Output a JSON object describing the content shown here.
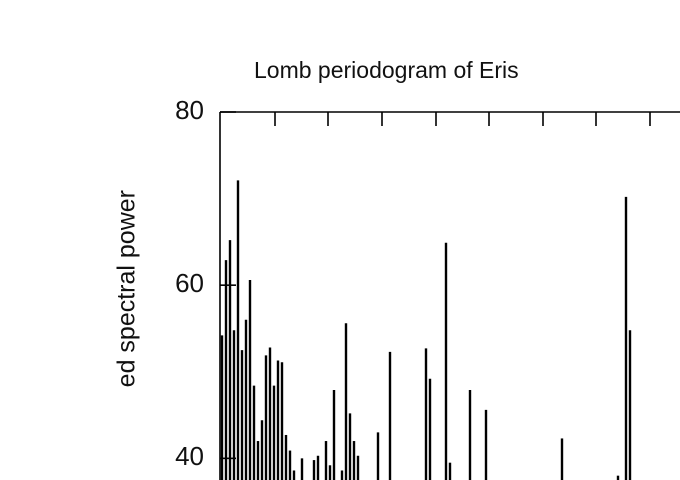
{
  "chart_data": {
    "type": "spike",
    "title": "Lomb periodogram of Eris",
    "y_label": "ed spectral power",
    "color": "#000000",
    "ylim": [
      37.5,
      80
    ],
    "yticks": [
      40,
      60,
      80
    ],
    "values": [
      54.2,
      62.9,
      65.2,
      54.8,
      72.1,
      52.5,
      56,
      60.6,
      48.4,
      42,
      44.4,
      51.9,
      52.8,
      48.4,
      51.3,
      51.1,
      42.7,
      40.9,
      38.6,
      null,
      40,
      null,
      null,
      39.8,
      40.3,
      null,
      42,
      39.2,
      47.9,
      null,
      38.6,
      55.6,
      45.2,
      42,
      40.3,
      null,
      null,
      null,
      null,
      43,
      null,
      null,
      52.3,
      null,
      null,
      null,
      null,
      null,
      null,
      null,
      null,
      52.7,
      49.2,
      null,
      null,
      null,
      64.9,
      39.5,
      null,
      null,
      null,
      null,
      47.9,
      null,
      null,
      null,
      45.6,
      null,
      null,
      null,
      null,
      null,
      null,
      null,
      null,
      null,
      null,
      null,
      null,
      null,
      null,
      null,
      null,
      null,
      null,
      42.3,
      null,
      null,
      null,
      null,
      null,
      null,
      null,
      null,
      null,
      null,
      null,
      null,
      null,
      38,
      null,
      70.2,
      54.8,
      null,
      null,
      null,
      null,
      null,
      null,
      null,
      null,
      null,
      null,
      null,
      null
    ]
  }
}
